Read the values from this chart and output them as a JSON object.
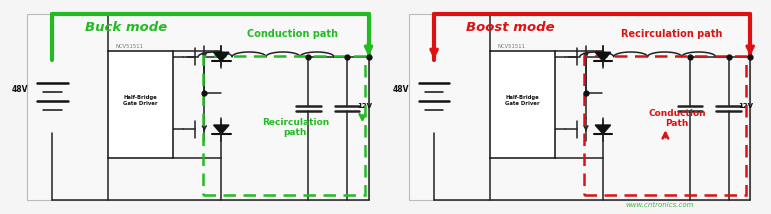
{
  "green": "#22bb22",
  "red": "#dd1111",
  "black": "#222222",
  "dark": "#111111",
  "gray": "#777777",
  "bg": "#f5f5f5",
  "watermark": "www.cntronics.com",
  "watermark_color": "#22aa22",
  "panel_bg": "#f8f8f8",
  "panels": [
    {
      "title": "Buck mode",
      "title_color": "#22bb22",
      "path_color": "#22bb22",
      "cond_label": "Conduction path",
      "recirc_label": "Recirculation\npath",
      "is_buck": true,
      "ox": 0.01
    },
    {
      "title": "Boost mode",
      "title_color": "#dd1111",
      "path_color": "#dd1111",
      "cond_label": "Recirculation path",
      "recirc_label": "Conduction\nPath",
      "is_buck": false,
      "ox": 0.505
    }
  ]
}
